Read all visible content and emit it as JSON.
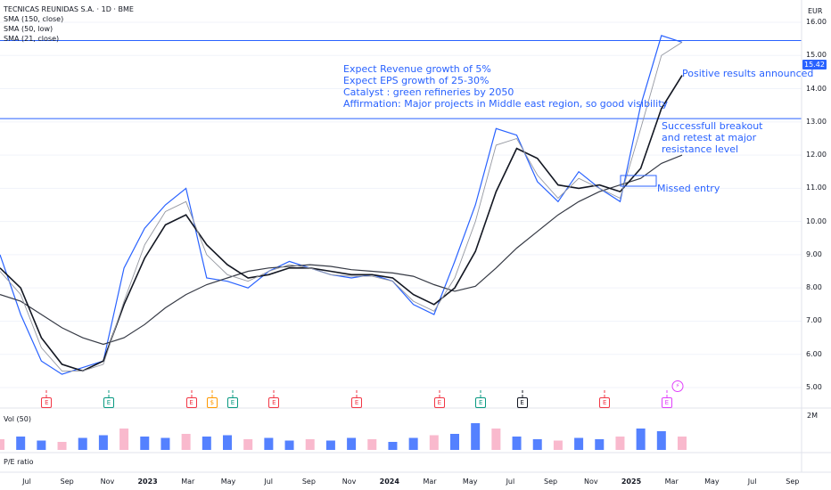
{
  "window": {
    "symbol": "TECNICAS REUNIDAS S.A. · 1D · BME",
    "currency": "EUR"
  },
  "indicators": [
    "SMA (150, close)",
    "SMA (50, low)",
    "SMA (21, close)"
  ],
  "last_price": "15.42",
  "panes": {
    "volume_label": "Vol (50)",
    "volume_tick": "2M",
    "pe_label": "P/E ratio"
  },
  "annotations": {
    "thesis": [
      "Expect Revenue growth of 5%",
      "Expect EPS growth of 25-30%",
      "Catalyst : green refineries by 2050",
      "Affirmation: Major projects in Middle east region, so good visibility"
    ],
    "positive": "Positive results announced",
    "breakout": [
      "Successfull breakout",
      "and retest at major",
      "resistance level"
    ],
    "missed": "Missed entry"
  },
  "events": [
    {
      "x": "2022-08",
      "type": "E",
      "color": "#f23645"
    },
    {
      "x": "2022-11",
      "type": "E",
      "color": "#089981"
    },
    {
      "x": "2023-03",
      "type": "E",
      "color": "#f23645"
    },
    {
      "x": "2023-04",
      "type": "$",
      "color": "#ff9800"
    },
    {
      "x": "2023-05",
      "type": "E",
      "color": "#089981"
    },
    {
      "x": "2023-07",
      "type": "E",
      "color": "#f23645"
    },
    {
      "x": "2023-11",
      "type": "E",
      "color": "#f23645"
    },
    {
      "x": "2024-03",
      "type": "E",
      "color": "#f23645"
    },
    {
      "x": "2024-05",
      "type": "E",
      "color": "#089981"
    },
    {
      "x": "2024-07",
      "type": "E",
      "color": "#131722"
    },
    {
      "x": "2024-11",
      "type": "E",
      "color": "#f23645"
    },
    {
      "x": "2025-02",
      "type": "E",
      "color": "#e040fb"
    }
  ],
  "chart_data": {
    "type": "line",
    "title": "TECNICAS REUNIDAS S.A. · 1D · BME",
    "y_unit": "EUR",
    "ylim": [
      5.0,
      16.0
    ],
    "yticks": [
      "16.00",
      "15.00",
      "14.00",
      "13.00",
      "12.00",
      "11.00",
      "10.00",
      "9.00",
      "8.00",
      "7.00",
      "6.00",
      "5.00"
    ],
    "xticks": [
      "Jul",
      "Sep",
      "Nov",
      "2023",
      "Mar",
      "May",
      "Jul",
      "Sep",
      "Nov",
      "2024",
      "Mar",
      "May",
      "Jul",
      "Sep",
      "Nov",
      "2025",
      "Mar",
      "May",
      "Jul",
      "Sep"
    ],
    "x": [
      "2022-06",
      "2022-07",
      "2022-08",
      "2022-09",
      "2022-10",
      "2022-11",
      "2022-12",
      "2023-01",
      "2023-02",
      "2023-03",
      "2023-04",
      "2023-05",
      "2023-06",
      "2023-07",
      "2023-08",
      "2023-09",
      "2023-10",
      "2023-11",
      "2023-12",
      "2024-01",
      "2024-02",
      "2024-03",
      "2024-04",
      "2024-05",
      "2024-06",
      "2024-07",
      "2024-08",
      "2024-09",
      "2024-10",
      "2024-11",
      "2024-12",
      "2025-01",
      "2025-02",
      "2025-03"
    ],
    "series": [
      {
        "values": [
          9.0,
          7.2,
          5.8,
          5.4,
          5.6,
          5.8,
          8.6,
          9.8,
          10.5,
          11.0,
          8.3,
          8.2,
          8.0,
          8.5,
          8.8,
          8.6,
          8.4,
          8.3,
          8.4,
          8.2,
          7.5,
          7.2,
          8.8,
          10.5,
          12.8,
          12.6,
          11.2,
          10.6,
          11.5,
          11.0,
          10.6,
          13.5,
          15.6,
          15.4
        ],
        "color": "#2962ff"
      },
      {
        "values": [
          7.8,
          7.6,
          7.2,
          6.8,
          6.5,
          6.3,
          6.5,
          6.9,
          7.4,
          7.8,
          8.1,
          8.3,
          8.5,
          8.6,
          8.65,
          8.7,
          8.65,
          8.55,
          8.5,
          8.45,
          8.35,
          8.1,
          7.9,
          8.05,
          8.6,
          9.2,
          9.7,
          10.2,
          10.6,
          10.9,
          11.1,
          11.3,
          11.75,
          12.0
        ],
        "color": "#363a45"
      },
      {
        "values": [
          8.6,
          8.0,
          6.5,
          5.7,
          5.5,
          5.8,
          7.5,
          8.9,
          9.9,
          10.2,
          9.3,
          8.7,
          8.3,
          8.4,
          8.6,
          8.6,
          8.5,
          8.4,
          8.4,
          8.3,
          7.8,
          7.5,
          8.0,
          9.1,
          10.9,
          12.2,
          11.9,
          11.1,
          11.0,
          11.1,
          10.9,
          11.6,
          13.4,
          14.4
        ],
        "color": "#131722"
      },
      {
        "values": [
          8.5,
          7.8,
          6.2,
          5.5,
          5.5,
          5.7,
          7.6,
          9.3,
          10.3,
          10.6,
          9.0,
          8.4,
          8.2,
          8.5,
          8.7,
          8.6,
          8.4,
          8.35,
          8.35,
          8.2,
          7.6,
          7.3,
          8.3,
          10.0,
          12.3,
          12.5,
          11.4,
          10.7,
          11.3,
          11.0,
          10.7,
          12.8,
          15.0,
          15.4
        ],
        "color": "#9598a1"
      }
    ],
    "hlines": [
      13.1,
      15.45
    ],
    "volume": [
      0.4,
      0.5,
      0.35,
      0.3,
      0.45,
      0.55,
      0.8,
      0.5,
      0.45,
      0.6,
      0.5,
      0.55,
      0.4,
      0.45,
      0.35,
      0.4,
      0.35,
      0.45,
      0.4,
      0.3,
      0.45,
      0.55,
      0.6,
      1.0,
      0.8,
      0.5,
      0.4,
      0.35,
      0.45,
      0.4,
      0.5,
      0.8,
      0.7,
      0.5
    ]
  }
}
